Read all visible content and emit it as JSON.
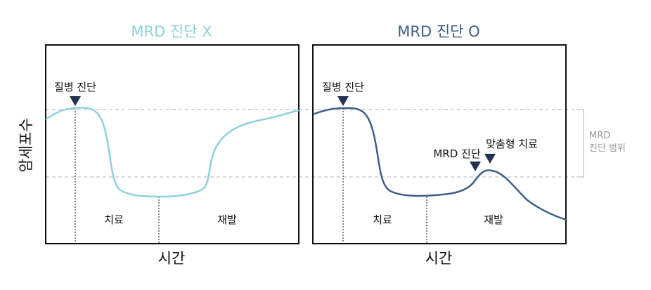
{
  "colors": {
    "left_curve": "#8fd1dc",
    "right_curve": "#3f5f86",
    "marker": "#1f3350",
    "dashed": "#b3b3b3",
    "range_bracket": "#bdbdbd",
    "range_text": "#9a9a9a"
  },
  "left_panel": {
    "title": "MRD 진단 X",
    "diagnosis_label": "질병 진단",
    "treatment_label": "치료",
    "relapse_label": "재발",
    "x_axis_label": "시간"
  },
  "right_panel": {
    "title": "MRD 진단 O",
    "diagnosis_label": "질병 진단",
    "mrd_label": "MRD 진단",
    "custom_treatment_label": "맞춤형 치료",
    "treatment_label": "치료",
    "relapse_label": "재발",
    "x_axis_label": "시간"
  },
  "y_axis_label": "암세포수",
  "range": {
    "line1": "MRD",
    "line2": "진단 범위"
  }
}
